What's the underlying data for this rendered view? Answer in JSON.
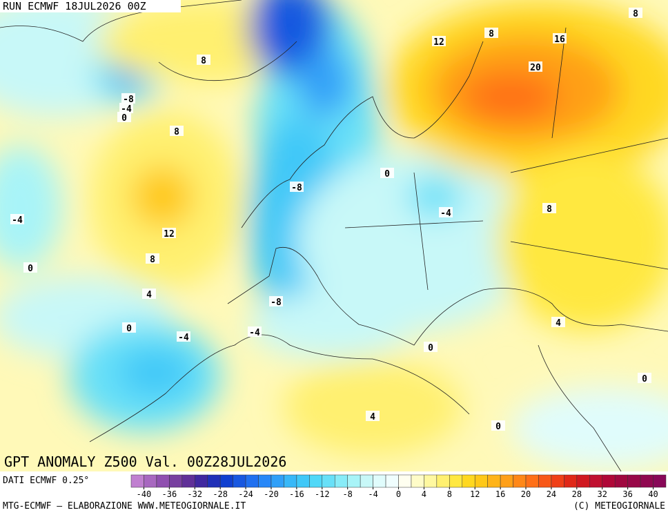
{
  "header": {
    "run": "RUN ECMWF 18JUL2026 00Z"
  },
  "title": "GPT ANOMALY Z500 Val. 00Z28JUL2026",
  "contour_labels": [
    8,
    12,
    8,
    16,
    20,
    8,
    -8,
    -4,
    0,
    8,
    -8,
    0,
    -4,
    8,
    -4,
    12,
    8,
    0,
    4,
    -8,
    4,
    0,
    -4,
    -4,
    0,
    0,
    4,
    0
  ],
  "footer": {
    "data_source": "DATI ECMWF 0.25°",
    "credit": "MTG-ECMWF – ELABORAZIONE WWW.METEOGIORNALE.IT",
    "copyright": "(C) METEOGIORNALE"
  },
  "colorbar": {
    "min": -42,
    "max": 42,
    "colors": [
      "#c080d0",
      "#a868c0",
      "#9050b0",
      "#7840a0",
      "#603098",
      "#4028a0",
      "#2030b8",
      "#1040d0",
      "#1858e0",
      "#2070f0",
      "#2888f8",
      "#30a0f8",
      "#38b8f8",
      "#40c8f8",
      "#50d8f8",
      "#68e0f8",
      "#88ecf8",
      "#a8f4f8",
      "#c8f8f8",
      "#e0fcfc",
      "#f0fefe",
      "#fffff0",
      "#fffcc8",
      "#fff8a0",
      "#fff070",
      "#ffe840",
      "#ffd820",
      "#ffc818",
      "#ffb418",
      "#ffa018",
      "#ff8818",
      "#ff7018",
      "#f85818",
      "#f04018",
      "#e02818",
      "#d01820",
      "#c01030",
      "#b00838",
      "#a00840",
      "#980848",
      "#900850",
      "#880858"
    ],
    "ticks": [
      -40,
      -36,
      -32,
      -28,
      -24,
      -20,
      -16,
      -12,
      -8,
      -4,
      0,
      4,
      8,
      12,
      16,
      20,
      24,
      28,
      32,
      36,
      40
    ]
  }
}
